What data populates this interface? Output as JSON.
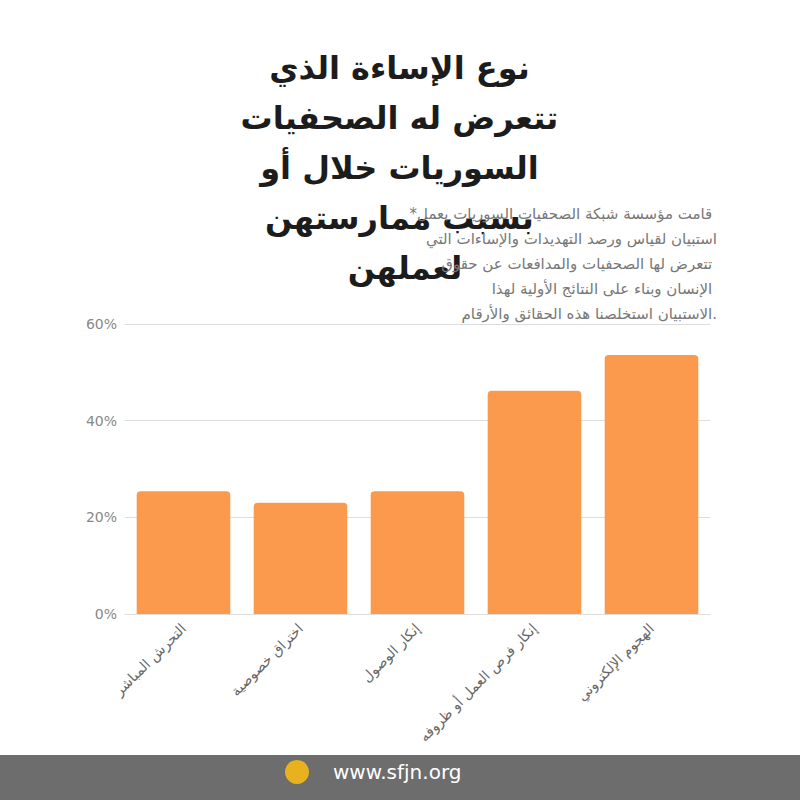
{
  "chart_data": {
    "type": "bar",
    "title": "نوع الإساءة الذي تتعرض له الصحفيات السوريات خلال أو بسبب ممارستهن لعملهن",
    "subtitle": "*قامت مؤسسة شبكة الصحفيات السوريات بعمل استبيان لقياس ورصد التهديدات والإساءات التي تتعرض لها الصحفيات والمدافعات عن حقوق الإنسان وبناء على النتائج الأولية لهذا الاستبيان استخلصنا هذه الحقائق والأرقام.",
    "annotations": [
      "www.sfjn.org"
    ],
    "categories": [
      "التحرش المباشر",
      "اختراق خصوصية",
      "إنكار الوصول",
      "إنكار فرص العمل أو ظروفه",
      "الهجوم الإلكتروني"
    ],
    "values": [
      25.4,
      23.0,
      25.4,
      46.2,
      53.6
    ],
    "color": "#fb9a4c",
    "ylim": [
      0,
      60
    ],
    "yticks": [
      {
        "value": 0,
        "label": "0%"
      },
      {
        "value": 20,
        "label": "20%"
      },
      {
        "value": 40,
        "label": "40%"
      },
      {
        "value": 60,
        "label": "60%"
      }
    ],
    "grid": true
  }
}
